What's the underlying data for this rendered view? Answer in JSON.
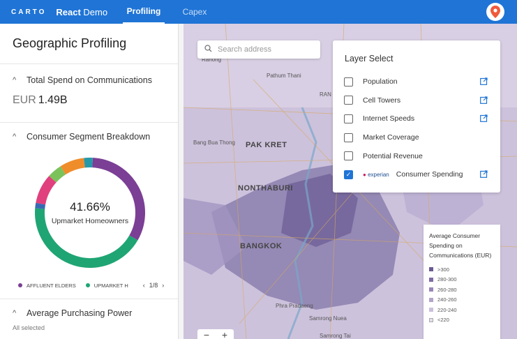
{
  "topbar": {
    "logo": "CARTO",
    "app_name_bold": "React",
    "app_name_rest": " Demo",
    "tabs": [
      "Profiling",
      "Capex"
    ]
  },
  "sidebar": {
    "title": "Geographic Profiling",
    "total_spend": {
      "label": "Total Spend on Communications",
      "currency": "EUR",
      "value": "1.49B"
    },
    "segments": {
      "label": "Consumer Segment Breakdown",
      "center_value": "41.66%",
      "center_label": "Upmarket Homeowners",
      "legend": [
        {
          "label": "AFFLUENT ELDERS",
          "color": "#7b3f95"
        },
        {
          "label": "UPMARKET H",
          "color": "#1fa574"
        }
      ],
      "pager": "1/8",
      "slices": [
        {
          "value": 31.5,
          "color": "#7b3f95"
        },
        {
          "value": 41.66,
          "color": "#1fa574"
        },
        {
          "value": 1.5,
          "color": "#3969b3"
        },
        {
          "value": 8.5,
          "color": "#e0407d"
        },
        {
          "value": 4.2,
          "color": "#7cc25b"
        },
        {
          "value": 7.0,
          "color": "#ef8d2a"
        },
        {
          "value": 2.5,
          "color": "#2699a9"
        }
      ]
    },
    "purchasing": {
      "label": "Average Purchasing Power",
      "sub": "All selected"
    }
  },
  "search": {
    "placeholder": "Search address"
  },
  "map": {
    "places": [
      {
        "name": "Ranong",
        "big": false
      },
      {
        "name": "Pathum Thani",
        "big": false
      },
      {
        "name": "Bang Bua Thong",
        "big": false
      },
      {
        "name": "PAK KRET",
        "big": true
      },
      {
        "name": "NONTHABURI",
        "big": true
      },
      {
        "name": "BANGKOK",
        "big": true
      },
      {
        "name": "Phra Pradaeng",
        "big": false
      },
      {
        "name": "Samrong Nuea",
        "big": false
      },
      {
        "name": "Samrong Tai",
        "big": false
      },
      {
        "name": "RAN",
        "big": false
      }
    ]
  },
  "layer_select": {
    "title": "Layer Select",
    "layers": [
      {
        "label": "Population",
        "checked": false,
        "link": true
      },
      {
        "label": "Cell Towers",
        "checked": false,
        "link": true
      },
      {
        "label": "Internet Speeds",
        "checked": false,
        "link": true
      },
      {
        "label": "Market Coverage",
        "checked": false,
        "link": false
      },
      {
        "label": "Potential Revenue",
        "checked": false,
        "link": false
      },
      {
        "label": "Consumer Spending",
        "checked": true,
        "link": true,
        "brand": "experian"
      }
    ]
  },
  "map_legend": {
    "title": "Average Consumer Spending on Communications (EUR)",
    "items": [
      {
        "label": ">300",
        "color": "#6a5a93"
      },
      {
        "label": "280-300",
        "color": "#7f6aa6"
      },
      {
        "label": "260-280",
        "color": "#9886b7"
      },
      {
        "label": "240-260",
        "color": "#b3a4c9"
      },
      {
        "label": "220-240",
        "color": "#cbc0dc"
      },
      {
        "label": "<220",
        "color": "#e3ddec"
      }
    ]
  },
  "zoom": {
    "minus": "−",
    "plus": "+"
  }
}
